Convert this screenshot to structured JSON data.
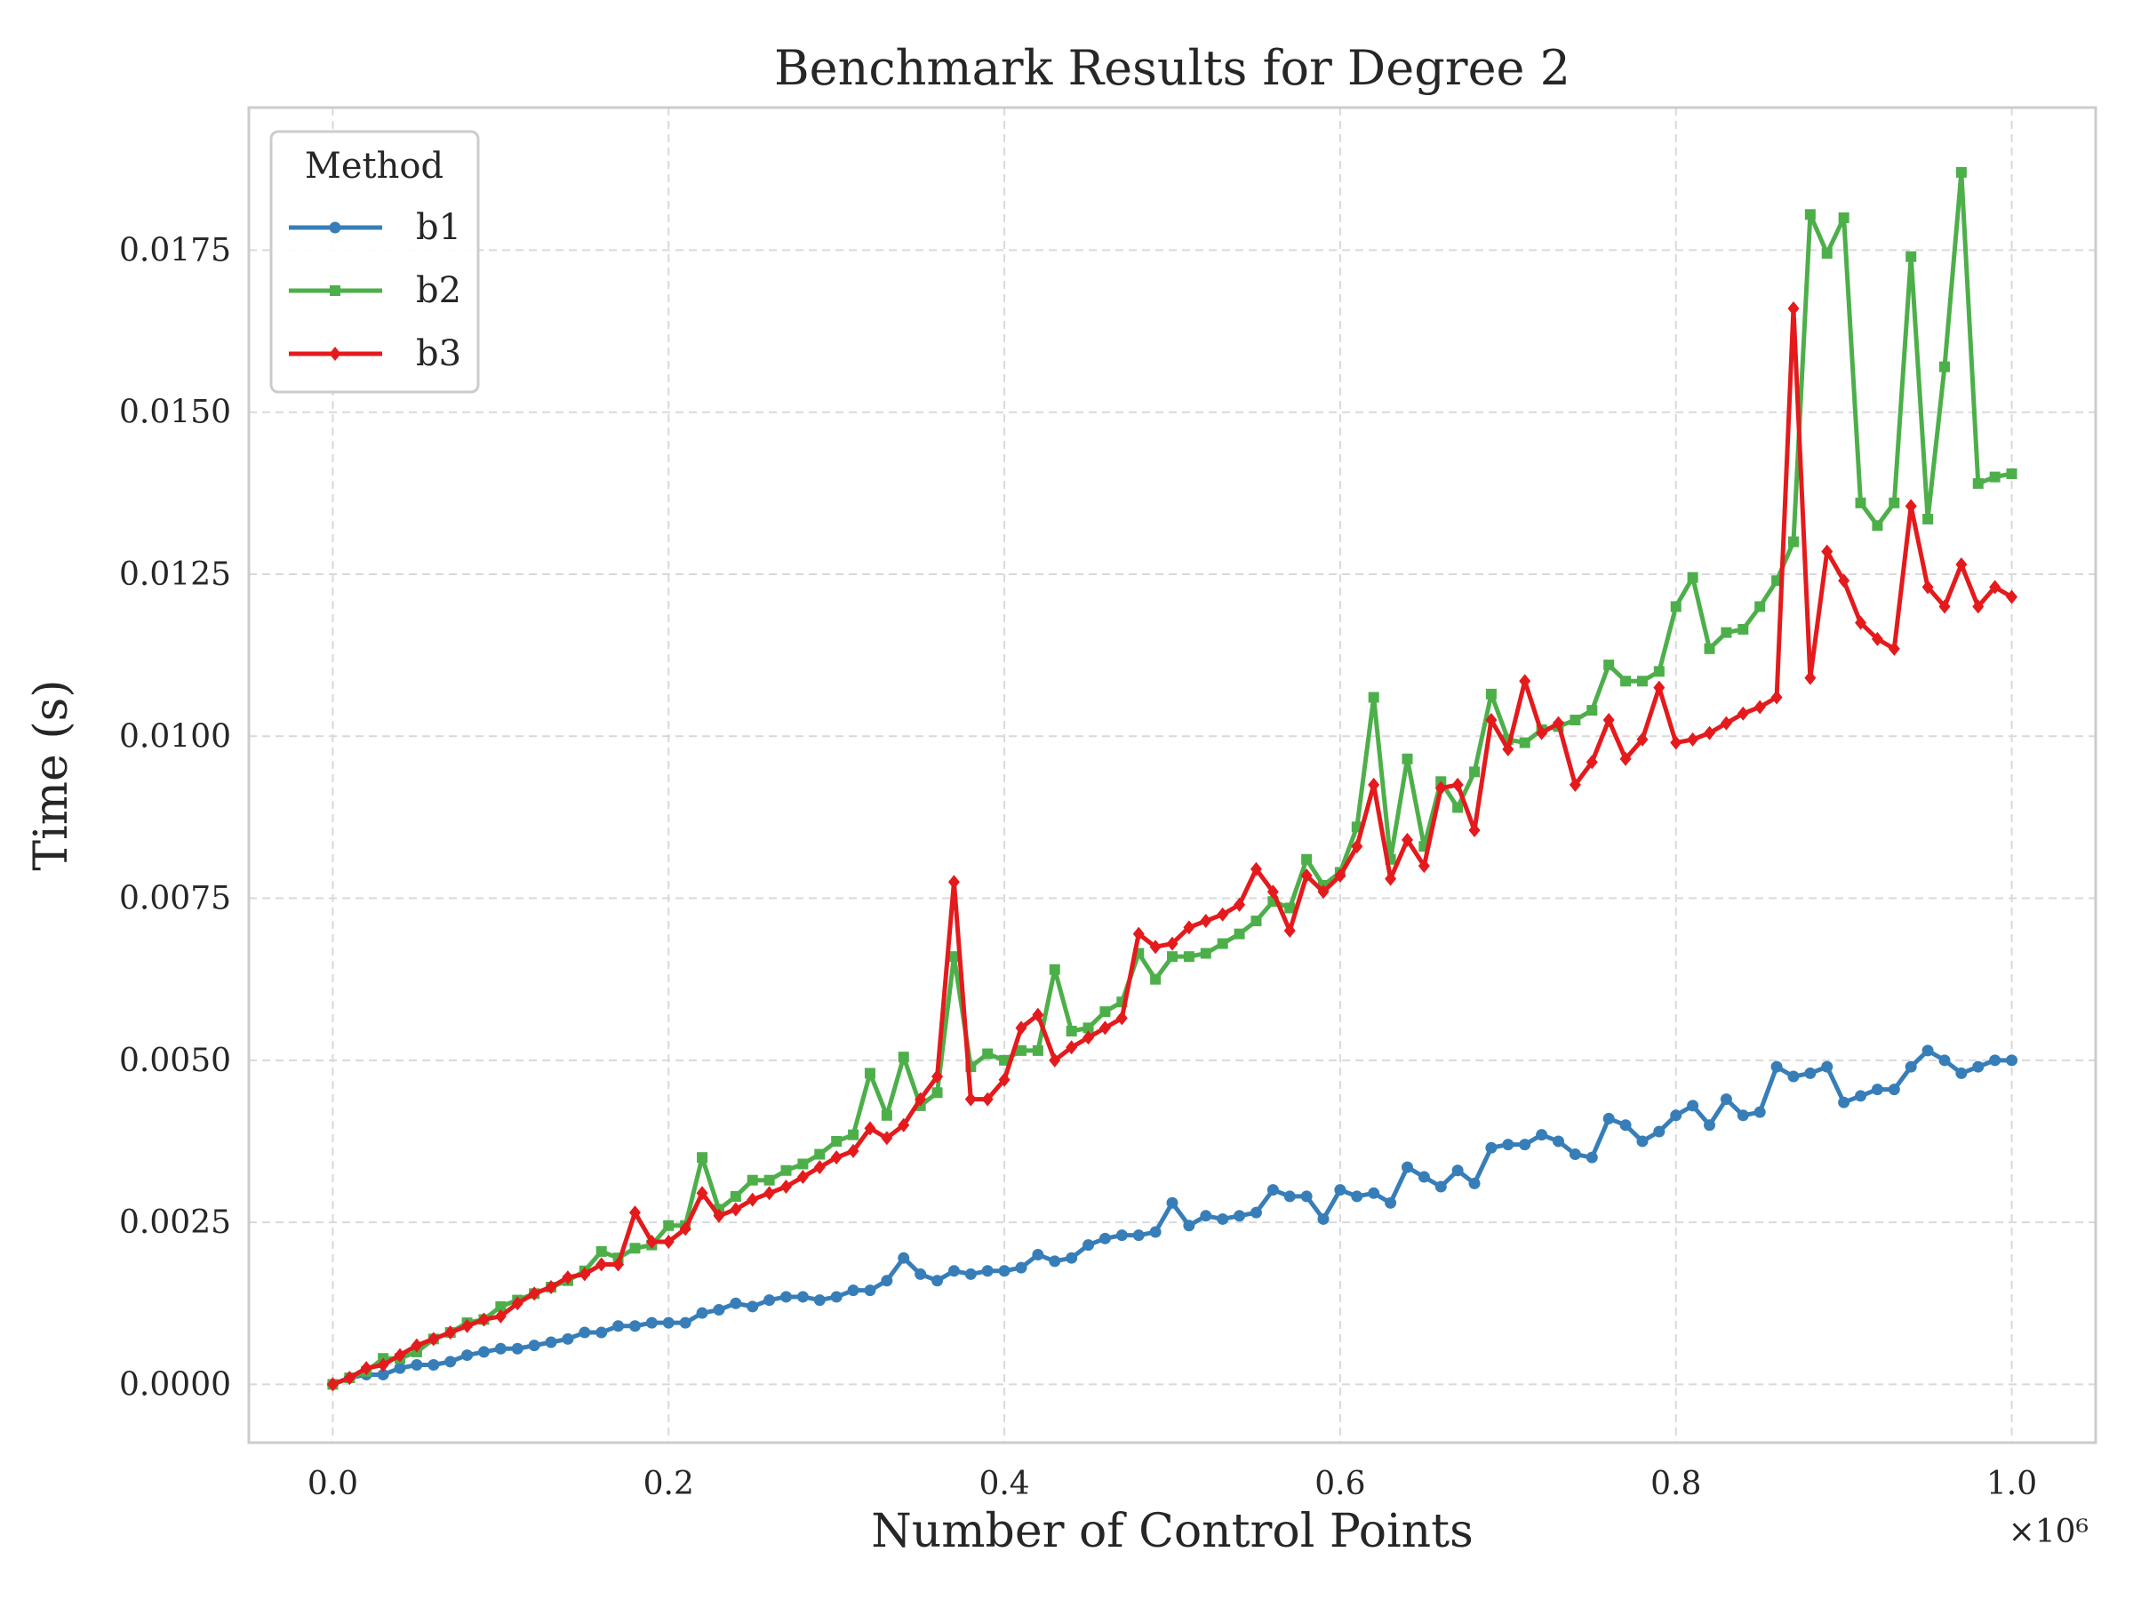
{
  "chart_data": {
    "type": "line",
    "title": "Benchmark Results for Degree 2",
    "xlabel": "Number of Control Points",
    "ylabel": "Time (s)",
    "x_offset_text": "×10⁶",
    "x_scale": 1000000,
    "xlim": [
      -0.05,
      1.05
    ],
    "ylim": [
      -0.0009,
      0.0197
    ],
    "xticks": [
      0.0,
      0.2,
      0.4,
      0.6,
      0.8,
      1.0
    ],
    "xtick_labels": [
      "0.0",
      "0.2",
      "0.4",
      "0.6",
      "0.8",
      "1.0"
    ],
    "yticks": [
      0.0,
      0.0025,
      0.005,
      0.0075,
      0.01,
      0.0125,
      0.015,
      0.0175
    ],
    "ytick_labels": [
      "0.0000",
      "0.0025",
      "0.0050",
      "0.0075",
      "0.0100",
      "0.0125",
      "0.0150",
      "0.0175"
    ],
    "grid": true,
    "legend": {
      "title": "Method",
      "position": "top-left"
    },
    "x": [
      0.0,
      0.01,
      0.02,
      0.03,
      0.04,
      0.05,
      0.06,
      0.07,
      0.08,
      0.09,
      0.1,
      0.11,
      0.12,
      0.13,
      0.14,
      0.15,
      0.16,
      0.17,
      0.18,
      0.19,
      0.2,
      0.21,
      0.22,
      0.23,
      0.24,
      0.25,
      0.26,
      0.27,
      0.28,
      0.29,
      0.3,
      0.31,
      0.32,
      0.33,
      0.34,
      0.35,
      0.36,
      0.37,
      0.38,
      0.39,
      0.4,
      0.41,
      0.42,
      0.43,
      0.44,
      0.45,
      0.46,
      0.47,
      0.48,
      0.49,
      0.5,
      0.51,
      0.52,
      0.53,
      0.54,
      0.55,
      0.56,
      0.57,
      0.58,
      0.59,
      0.6,
      0.61,
      0.62,
      0.63,
      0.64,
      0.65,
      0.66,
      0.67,
      0.68,
      0.69,
      0.7,
      0.71,
      0.72,
      0.73,
      0.74,
      0.75,
      0.76,
      0.77,
      0.78,
      0.79,
      0.8,
      0.81,
      0.82,
      0.83,
      0.84,
      0.85,
      0.86,
      0.87,
      0.88,
      0.89,
      0.9,
      0.91,
      0.92,
      0.93,
      0.94,
      0.95,
      0.96,
      0.97,
      0.98,
      0.99,
      1.0
    ],
    "series": [
      {
        "name": "b1",
        "color": "#377eb8",
        "marker": "circle",
        "values": [
          0.0,
          0.0001,
          0.00015,
          0.00015,
          0.00025,
          0.0003,
          0.0003,
          0.00035,
          0.00045,
          0.0005,
          0.00055,
          0.00055,
          0.0006,
          0.00065,
          0.0007,
          0.0008,
          0.0008,
          0.0009,
          0.0009,
          0.00095,
          0.00095,
          0.00095,
          0.0011,
          0.00115,
          0.00125,
          0.0012,
          0.0013,
          0.00135,
          0.00135,
          0.0013,
          0.00135,
          0.00145,
          0.00145,
          0.0016,
          0.00195,
          0.0017,
          0.0016,
          0.00175,
          0.0017,
          0.00175,
          0.00175,
          0.0018,
          0.002,
          0.0019,
          0.00195,
          0.00215,
          0.00225,
          0.0023,
          0.0023,
          0.00235,
          0.0028,
          0.00245,
          0.0026,
          0.00255,
          0.0026,
          0.00265,
          0.003,
          0.0029,
          0.0029,
          0.00255,
          0.003,
          0.0029,
          0.00295,
          0.0028,
          0.00335,
          0.0032,
          0.00305,
          0.0033,
          0.0031,
          0.00365,
          0.0037,
          0.0037,
          0.00385,
          0.00375,
          0.00355,
          0.0035,
          0.0041,
          0.004,
          0.00375,
          0.0039,
          0.00415,
          0.0043,
          0.004,
          0.0044,
          0.00415,
          0.0042,
          0.0049,
          0.00475,
          0.0048,
          0.0049,
          0.00435,
          0.00445,
          0.00455,
          0.00455,
          0.0049,
          0.00515,
          0.005,
          0.0048,
          0.0049,
          0.005,
          0.005
        ]
      },
      {
        "name": "b2",
        "color": "#4daf4a",
        "marker": "square",
        "values": [
          0.0,
          0.0001,
          0.0002,
          0.0004,
          0.0004,
          0.0005,
          0.0007,
          0.0008,
          0.00095,
          0.001,
          0.0012,
          0.0013,
          0.0014,
          0.0015,
          0.0016,
          0.00175,
          0.00205,
          0.00195,
          0.0021,
          0.00215,
          0.00245,
          0.00245,
          0.0035,
          0.0027,
          0.0029,
          0.00315,
          0.00315,
          0.0033,
          0.0034,
          0.00355,
          0.00375,
          0.00385,
          0.0048,
          0.00415,
          0.00505,
          0.0043,
          0.0045,
          0.0066,
          0.0049,
          0.0051,
          0.005,
          0.00515,
          0.00515,
          0.0064,
          0.00545,
          0.0055,
          0.00575,
          0.0059,
          0.00665,
          0.00625,
          0.0066,
          0.0066,
          0.00665,
          0.0068,
          0.00695,
          0.00715,
          0.00745,
          0.00735,
          0.0081,
          0.0077,
          0.0079,
          0.0086,
          0.0106,
          0.0081,
          0.00965,
          0.0083,
          0.0093,
          0.0089,
          0.00945,
          0.01065,
          0.00995,
          0.0099,
          0.0101,
          0.01015,
          0.01025,
          0.0104,
          0.0111,
          0.01085,
          0.01085,
          0.011,
          0.012,
          0.01245,
          0.01135,
          0.0116,
          0.01165,
          0.012,
          0.0124,
          0.013,
          0.01805,
          0.01745,
          0.018,
          0.0136,
          0.01325,
          0.0136,
          0.0174,
          0.01335,
          0.0157,
          0.0187,
          0.0139,
          0.014,
          0.01405
        ]
      },
      {
        "name": "b3",
        "color": "#e41a1c",
        "marker": "diamond",
        "values": [
          0.0,
          0.0001,
          0.00025,
          0.0003,
          0.00045,
          0.0006,
          0.0007,
          0.0008,
          0.0009,
          0.001,
          0.00105,
          0.00125,
          0.0014,
          0.0015,
          0.00165,
          0.0017,
          0.00185,
          0.00185,
          0.00265,
          0.0022,
          0.0022,
          0.0024,
          0.00295,
          0.0026,
          0.0027,
          0.00285,
          0.00295,
          0.00305,
          0.0032,
          0.00335,
          0.0035,
          0.0036,
          0.00395,
          0.0038,
          0.004,
          0.0044,
          0.00475,
          0.00775,
          0.0044,
          0.0044,
          0.0047,
          0.0055,
          0.0057,
          0.005,
          0.0052,
          0.00535,
          0.0055,
          0.00565,
          0.00695,
          0.00675,
          0.0068,
          0.00705,
          0.00715,
          0.00725,
          0.0074,
          0.00795,
          0.0076,
          0.007,
          0.00785,
          0.0076,
          0.00785,
          0.0083,
          0.00925,
          0.0078,
          0.0084,
          0.008,
          0.0092,
          0.00925,
          0.00855,
          0.01025,
          0.0098,
          0.01085,
          0.01005,
          0.0102,
          0.00925,
          0.0096,
          0.01025,
          0.00965,
          0.00995,
          0.01075,
          0.0099,
          0.00995,
          0.01005,
          0.0102,
          0.01035,
          0.01045,
          0.0106,
          0.0166,
          0.0109,
          0.01285,
          0.0124,
          0.01175,
          0.0115,
          0.01135,
          0.01355,
          0.0123,
          0.012,
          0.01265,
          0.012,
          0.0123,
          0.01215
        ]
      }
    ]
  }
}
